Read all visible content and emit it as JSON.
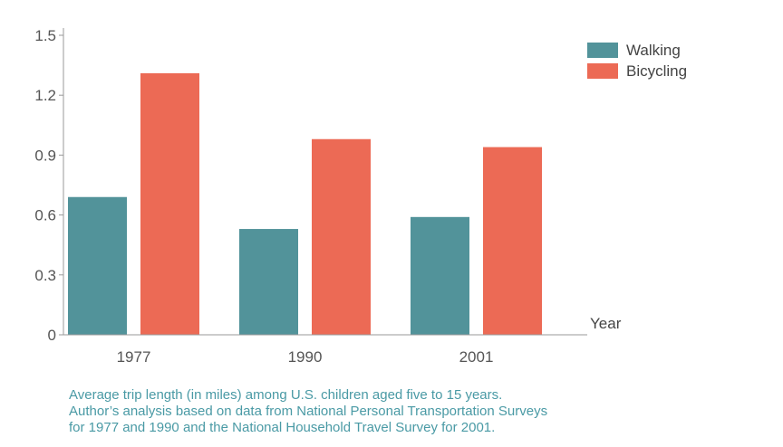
{
  "chart_data": {
    "type": "bar",
    "categories": [
      "1977",
      "1990",
      "2001"
    ],
    "series": [
      {
        "name": "Walking",
        "values": [
          0.69,
          0.53,
          0.59
        ],
        "color": "#52939a"
      },
      {
        "name": "Bicycling",
        "values": [
          1.31,
          0.98,
          0.94
        ],
        "color": "#ec6a55"
      }
    ],
    "xlabel": "Year",
    "ylabel": "",
    "ylim": [
      0,
      1.5
    ],
    "yticks": [
      0,
      0.3,
      0.6,
      0.9,
      1.2,
      1.5
    ],
    "ytick_labels": [
      "0",
      "0.3",
      "0.6",
      "0.9",
      "1.2",
      "1.5"
    ],
    "legend_position": "top-right",
    "grid": false
  },
  "caption": {
    "lines": [
      "Average trip length (in miles) among U.S. children aged five to 15 years.",
      "Author’s analysis based on data from National Personal Transportation Surveys",
      "for 1977 and 1990 and the National Household Travel Survey for 2001."
    ]
  }
}
